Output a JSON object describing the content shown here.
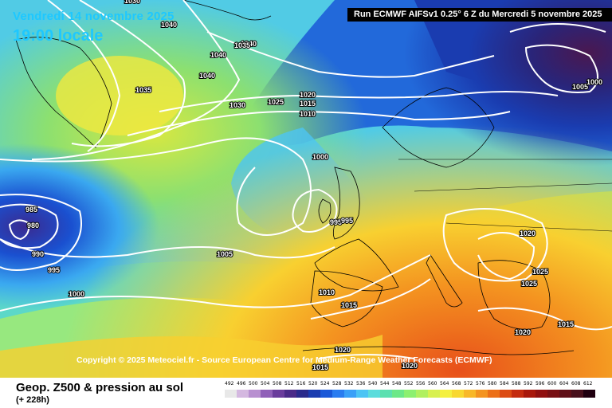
{
  "header": {
    "date": "Vendredi 14 novembre 2025",
    "time": "19:00 locale",
    "run": "Run ECMWF AIFSv1 0.25° 6 Z du Mercredi 5 novembre 2025"
  },
  "copyright": "Copyright © 2025 Meteociel.fr - Source European Centre for Medium-Range Weather Forecasts (ECMWF)",
  "legend": {
    "title": "Geop. Z500 & pression au sol",
    "subtitle": "(+ 228h)",
    "scale_labels": [
      "492",
      "496",
      "500",
      "504",
      "508",
      "512",
      "516",
      "520",
      "524",
      "528",
      "532",
      "536",
      "540",
      "544",
      "548",
      "552",
      "556",
      "560",
      "564",
      "568",
      "572",
      "576",
      "580",
      "584",
      "588",
      "592",
      "596",
      "600",
      "604",
      "608",
      "612"
    ],
    "scale_colors": [
      "#e8e8e8",
      "#d4b8e0",
      "#b890d0",
      "#9060b8",
      "#6a3c9c",
      "#4a2a88",
      "#2a2a8c",
      "#1a3cb0",
      "#1a58d8",
      "#2a7cf0",
      "#3aa0f8",
      "#4cc4f4",
      "#5cdcdc",
      "#5ce0b0",
      "#6ce888",
      "#8cf070",
      "#b0f060",
      "#d8f050",
      "#f4f040",
      "#f8d830",
      "#f8b828",
      "#f49420",
      "#ec7018",
      "#dc4c14",
      "#c42c10",
      "#a8180c",
      "#901010",
      "#781014",
      "#601018",
      "#48101c",
      "#200010"
    ]
  },
  "isobars": [
    "1030",
    "1040",
    "1040",
    "1040",
    "1040",
    "1035",
    "1035",
    "1030",
    "1025",
    "1020",
    "1015",
    "1010",
    "1005",
    "1000",
    "995",
    "1000",
    "1005",
    "995",
    "985",
    "980",
    "990",
    "995",
    "1000",
    "1010",
    "1015",
    "1020",
    "1025",
    "1025",
    "1020",
    "1015",
    "1020",
    "1015",
    "1020"
  ]
}
